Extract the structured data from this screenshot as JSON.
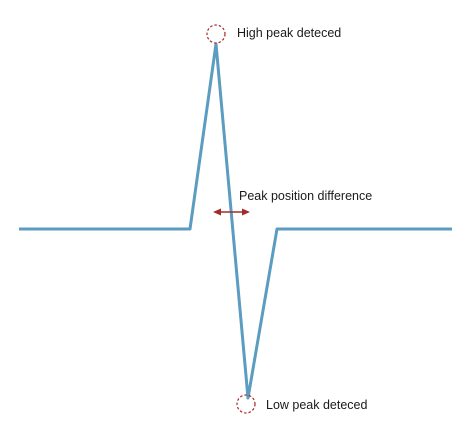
{
  "labels": {
    "high_peak": "High peak deteced",
    "low_peak": "Low peak deteced",
    "peak_difference": "Peak position difference"
  },
  "colors": {
    "signal": "#5b9cc0",
    "marker": "#a52a2a",
    "text": "#1a1a1a",
    "background": "#ffffff"
  }
}
